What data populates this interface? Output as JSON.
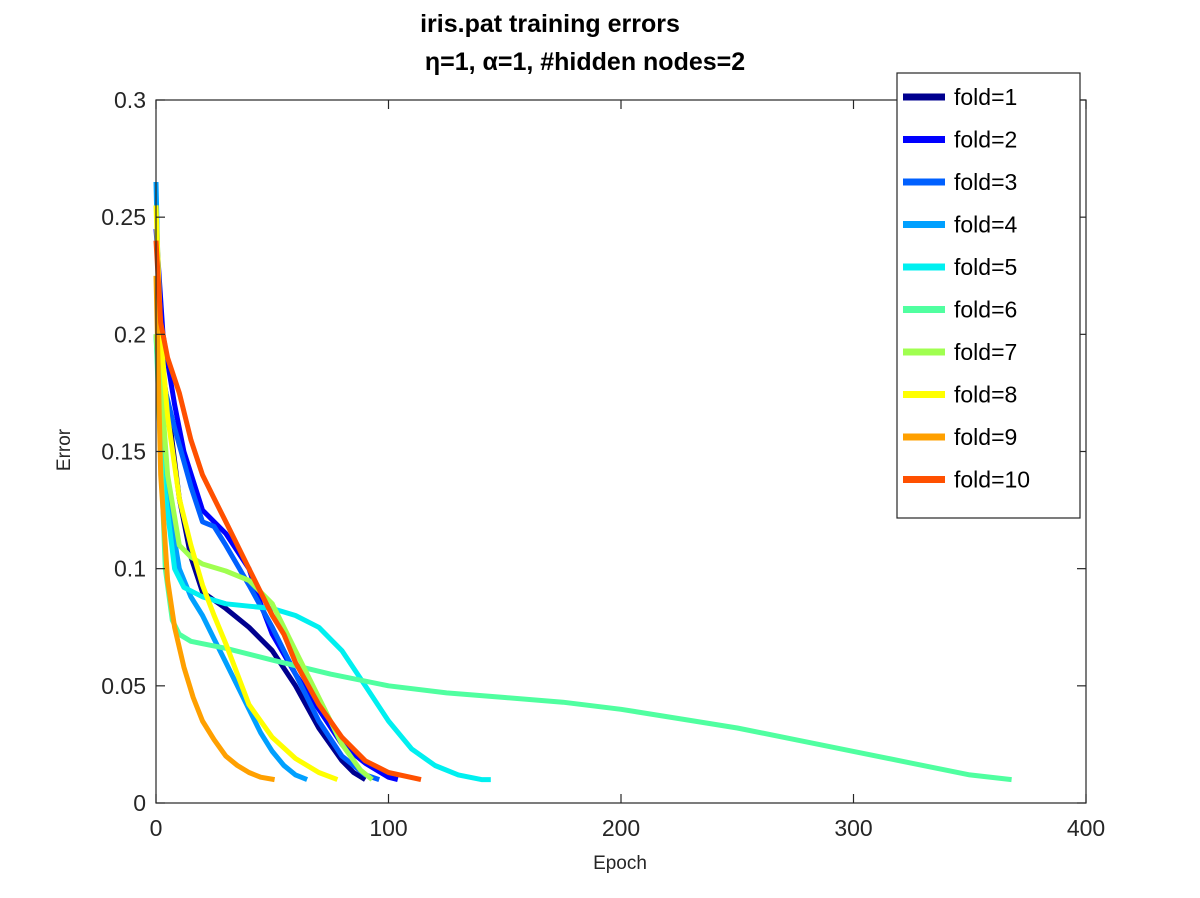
{
  "chart_data": {
    "type": "line",
    "title_line1": "iris.pat training errors",
    "title_line2": "η=1,   α=1, #hidden nodes=2",
    "xlabel": "Epoch",
    "ylabel": "Error",
    "xlim": [
      0,
      400
    ],
    "ylim": [
      0,
      0.3
    ],
    "xticks": [
      0,
      100,
      200,
      300,
      400
    ],
    "yticks": [
      0,
      0.05,
      0.1,
      0.15,
      0.2,
      0.25,
      0.3
    ],
    "xtick_labels": [
      "0",
      "100",
      "200",
      "300",
      "400"
    ],
    "ytick_labels": [
      "0",
      "0.05",
      "0.1",
      "0.15",
      "0.2",
      "0.25",
      "0.3"
    ],
    "legend_position": "top-right",
    "grid": false,
    "series": [
      {
        "name": "fold=1",
        "color": "#00008f",
        "x": [
          0,
          2,
          5,
          10,
          15,
          20,
          30,
          40,
          50,
          60,
          70,
          80,
          85,
          90
        ],
        "y": [
          0.2,
          0.19,
          0.17,
          0.13,
          0.105,
          0.09,
          0.083,
          0.075,
          0.065,
          0.05,
          0.032,
          0.018,
          0.013,
          0.01
        ]
      },
      {
        "name": "fold=2",
        "color": "#0000ff",
        "x": [
          0,
          3,
          8,
          12,
          20,
          30,
          40,
          45,
          50,
          60,
          70,
          80,
          90,
          100,
          104
        ],
        "y": [
          0.245,
          0.2,
          0.17,
          0.15,
          0.125,
          0.115,
          0.1,
          0.085,
          0.072,
          0.055,
          0.04,
          0.025,
          0.017,
          0.011,
          0.01
        ]
      },
      {
        "name": "fold=3",
        "color": "#0060ff",
        "x": [
          0,
          3,
          8,
          15,
          20,
          25,
          30,
          40,
          50,
          60,
          70,
          80,
          90,
          96
        ],
        "y": [
          0.2,
          0.18,
          0.16,
          0.135,
          0.12,
          0.118,
          0.11,
          0.093,
          0.075,
          0.055,
          0.035,
          0.02,
          0.012,
          0.01
        ]
      },
      {
        "name": "fold=4",
        "color": "#00a0ff",
        "x": [
          0,
          2,
          5,
          10,
          15,
          20,
          25,
          30,
          35,
          40,
          45,
          50,
          55,
          60,
          65
        ],
        "y": [
          0.265,
          0.18,
          0.13,
          0.1,
          0.088,
          0.08,
          0.07,
          0.06,
          0.05,
          0.04,
          0.03,
          0.022,
          0.016,
          0.012,
          0.01
        ]
      },
      {
        "name": "fold=5",
        "color": "#00f0f0",
        "x": [
          0,
          3,
          8,
          12,
          20,
          30,
          40,
          50,
          60,
          70,
          80,
          90,
          100,
          110,
          120,
          130,
          140,
          144
        ],
        "y": [
          0.2,
          0.14,
          0.1,
          0.092,
          0.088,
          0.085,
          0.084,
          0.083,
          0.08,
          0.075,
          0.065,
          0.05,
          0.035,
          0.023,
          0.016,
          0.012,
          0.01,
          0.01
        ]
      },
      {
        "name": "fold=6",
        "color": "#50ffa0",
        "x": [
          0,
          2,
          4,
          7,
          10,
          15,
          20,
          30,
          50,
          75,
          100,
          125,
          150,
          175,
          200,
          225,
          250,
          275,
          300,
          325,
          350,
          368
        ],
        "y": [
          0.2,
          0.15,
          0.1,
          0.078,
          0.072,
          0.069,
          0.068,
          0.066,
          0.061,
          0.055,
          0.05,
          0.047,
          0.045,
          0.043,
          0.04,
          0.036,
          0.032,
          0.027,
          0.022,
          0.017,
          0.012,
          0.01
        ]
      },
      {
        "name": "fold=7",
        "color": "#a0ff50",
        "x": [
          0,
          2,
          5,
          10,
          15,
          20,
          30,
          40,
          50,
          60,
          70,
          80,
          88,
          93
        ],
        "y": [
          0.2,
          0.18,
          0.14,
          0.11,
          0.105,
          0.102,
          0.099,
          0.095,
          0.085,
          0.065,
          0.045,
          0.025,
          0.014,
          0.01
        ]
      },
      {
        "name": "fold=8",
        "color": "#ffff00",
        "x": [
          0,
          2,
          5,
          10,
          15,
          20,
          25,
          30,
          35,
          40,
          50,
          60,
          70,
          78
        ],
        "y": [
          0.255,
          0.2,
          0.165,
          0.13,
          0.11,
          0.093,
          0.08,
          0.068,
          0.055,
          0.042,
          0.028,
          0.019,
          0.013,
          0.01
        ]
      },
      {
        "name": "fold=9",
        "color": "#ffa000",
        "x": [
          0,
          2,
          5,
          8,
          12,
          16,
          20,
          25,
          30,
          35,
          40,
          45,
          51
        ],
        "y": [
          0.225,
          0.14,
          0.095,
          0.075,
          0.058,
          0.045,
          0.035,
          0.027,
          0.02,
          0.016,
          0.013,
          0.011,
          0.01
        ]
      },
      {
        "name": "fold=10",
        "color": "#ff5000",
        "x": [
          0,
          2,
          5,
          10,
          15,
          20,
          25,
          30,
          35,
          40,
          45,
          50,
          55,
          60,
          70,
          80,
          90,
          100,
          114
        ],
        "y": [
          0.24,
          0.205,
          0.19,
          0.175,
          0.155,
          0.14,
          0.13,
          0.12,
          0.11,
          0.1,
          0.09,
          0.08,
          0.072,
          0.06,
          0.042,
          0.028,
          0.018,
          0.013,
          0.01
        ]
      }
    ]
  }
}
